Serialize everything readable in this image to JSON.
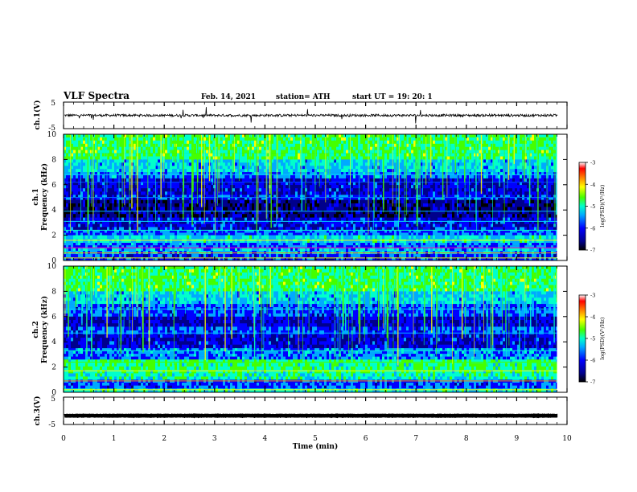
{
  "header": {
    "title": "VLF Spectra",
    "date": "Feb. 14, 2021",
    "station": "station= ATH",
    "start": "start  UT =   19: 20: 1"
  },
  "colormap": [
    "#000000",
    "#00008c",
    "#0000ff",
    "#00aaff",
    "#00ffcc",
    "#44ff00",
    "#ffff00",
    "#ff8800",
    "#ff0000",
    "#ffffff"
  ],
  "chart_data": [
    {
      "id": "ch1-voltage",
      "type": "line",
      "ylabel": "ch.1(V)",
      "ylim": [
        -5,
        5
      ],
      "yticks": [
        "5",
        "-5"
      ],
      "xlim": [
        0,
        10
      ],
      "baseline": 0,
      "color": "#000000"
    },
    {
      "id": "ch1-spectrogram",
      "type": "heatmap",
      "ylabel_line1": "ch.1",
      "ylabel_line2": "Frequency (kHz)",
      "xlim": [
        0,
        9.8
      ],
      "ylim": [
        0,
        10
      ],
      "yticks": [
        "0",
        "2",
        "4",
        "6",
        "8",
        "10"
      ],
      "colorbar": {
        "label": "log(PSD)(V²/Hz)",
        "range": [
          -7,
          -3
        ],
        "ticks": [
          "-3",
          "-4",
          "-5",
          "-6",
          "-7"
        ]
      }
    },
    {
      "id": "ch2-spectrogram",
      "type": "heatmap",
      "ylabel_line1": "ch.2",
      "ylabel_line2": "Frequency (kHz)",
      "xlim": [
        0,
        9.8
      ],
      "ylim": [
        0,
        10
      ],
      "yticks": [
        "0",
        "2",
        "4",
        "6",
        "8",
        "10"
      ],
      "colorbar": {
        "label": "log(PSD)(V²/Hz)",
        "range": [
          -7,
          -3
        ],
        "ticks": [
          "-3",
          "-4",
          "-5",
          "-6",
          "-7"
        ]
      }
    },
    {
      "id": "ch3-voltage",
      "type": "line",
      "ylabel": "ch.3(V)",
      "ylim": [
        -5,
        5
      ],
      "yticks": [
        "5",
        "-5"
      ],
      "xlim": [
        0,
        10
      ],
      "baseline": -1.8,
      "color": "#000000"
    }
  ],
  "x_axis": {
    "label": "Time  (min)",
    "range": [
      0,
      10
    ],
    "ticks": [
      "0",
      "1",
      "2",
      "3",
      "4",
      "5",
      "6",
      "7",
      "8",
      "9",
      "10"
    ]
  }
}
